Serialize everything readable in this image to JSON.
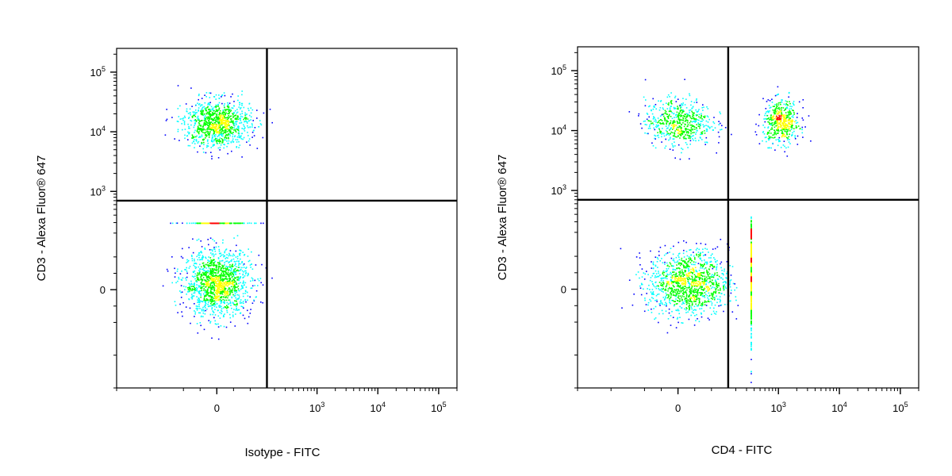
{
  "chart_data": [
    {
      "type": "scatter",
      "title": "",
      "xlabel": "Isotype - FITC",
      "ylabel": "CD3 - Alexa Fluor® 647",
      "x_scale": "biexponential",
      "y_scale": "biexponential",
      "xlim": [
        -300,
        200000
      ],
      "ylim": [
        -300,
        250000
      ],
      "x_ticks": [
        {
          "value": 0,
          "label": "0"
        },
        {
          "value": 1000,
          "label": "10",
          "exp": "3"
        },
        {
          "value": 10000,
          "label": "10",
          "exp": "4"
        },
        {
          "value": 100000,
          "label": "10",
          "exp": "5"
        }
      ],
      "y_ticks": [
        {
          "value": 0,
          "label": "0"
        },
        {
          "value": 1000,
          "label": "10",
          "exp": "3"
        },
        {
          "value": 10000,
          "label": "10",
          "exp": "4"
        },
        {
          "value": 100000,
          "label": "10",
          "exp": "5"
        }
      ],
      "gates": {
        "x": 150,
        "y": 700
      },
      "grid": false,
      "legend": "none",
      "colormap": [
        "#0000ff",
        "#00ffff",
        "#00ff00",
        "#ffff00",
        "#ff0000"
      ],
      "populations": [
        {
          "x_center": 0,
          "x_spread": 50,
          "y_center": 20,
          "y_spread": 50,
          "count": 1400
        },
        {
          "x_center": 0,
          "x_spread": 50,
          "y_center": 14000,
          "y_spread": 0.2,
          "count": 1000
        },
        {
          "x_center": 0,
          "x_spread": 50,
          "y_center": 300,
          "y_spread": 0.25,
          "count": 200
        }
      ]
    },
    {
      "type": "scatter",
      "title": "",
      "xlabel": "CD4 - FITC",
      "ylabel": "CD3 - Alexa Fluor® 647",
      "x_scale": "biexponential",
      "y_scale": "biexponential",
      "xlim": [
        -300,
        200000
      ],
      "ylim": [
        -300,
        250000
      ],
      "x_ticks": [
        {
          "value": 0,
          "label": "0"
        },
        {
          "value": 1000,
          "label": "10",
          "exp": "3"
        },
        {
          "value": 10000,
          "label": "10",
          "exp": "4"
        },
        {
          "value": 100000,
          "label": "10",
          "exp": "5"
        }
      ],
      "y_ticks": [
        {
          "value": 0,
          "label": "0"
        },
        {
          "value": 1000,
          "label": "10",
          "exp": "3"
        },
        {
          "value": 10000,
          "label": "10",
          "exp": "4"
        },
        {
          "value": 100000,
          "label": "10",
          "exp": "5"
        }
      ],
      "gates": {
        "x": 150,
        "y": 700
      },
      "grid": false,
      "legend": "none",
      "colormap": [
        "#0000ff",
        "#00ffff",
        "#00ff00",
        "#ffff00",
        "#ff0000"
      ],
      "populations": [
        {
          "x_center": 30,
          "x_spread": 60,
          "y_center": 20,
          "y_spread": 50,
          "count": 1200
        },
        {
          "x_center": 0,
          "x_spread": 50,
          "y_center": 14000,
          "y_spread": 0.2,
          "count": 600
        },
        {
          "x_center": 1100,
          "x_spread": 0.15,
          "y_center": 14000,
          "y_spread": 0.18,
          "count": 500
        },
        {
          "x_center": 350,
          "x_spread": 0.35,
          "y_center": 40,
          "y_spread": 120,
          "count": 350
        }
      ]
    }
  ]
}
